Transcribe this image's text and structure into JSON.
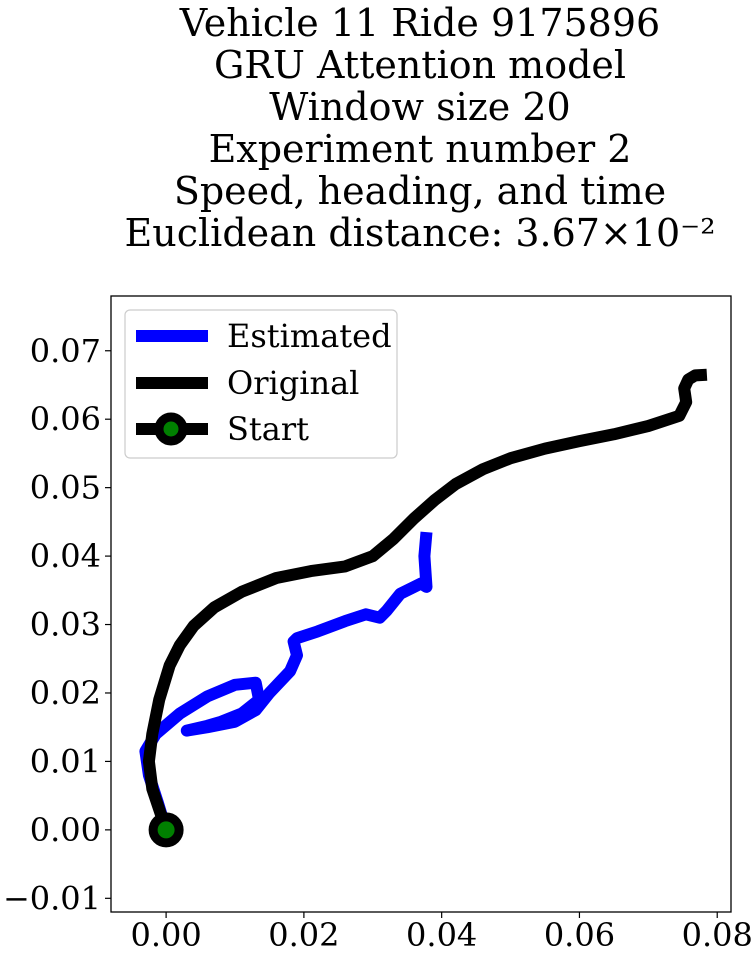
{
  "chart_data": {
    "type": "line",
    "title_lines": [
      "Vehicle 11 Ride 9175896",
      "GRU Attention model",
      "Window size 20",
      "Experiment number 2",
      "Speed, heading, and time",
      "Euclidean distance: 3.67×10⁻²"
    ],
    "xlabel": "",
    "ylabel": "",
    "xlim": [
      -0.008,
      0.082
    ],
    "ylim": [
      -0.012,
      0.078
    ],
    "x_ticks": [
      0.0,
      0.02,
      0.04,
      0.06,
      0.08
    ],
    "x_tick_labels": [
      "0.00",
      "0.02",
      "0.04",
      "0.06",
      "0.08"
    ],
    "y_ticks": [
      -0.01,
      0.0,
      0.01,
      0.02,
      0.03,
      0.04,
      0.05,
      0.06,
      0.07
    ],
    "y_tick_labels": [
      "−0.01",
      "0.00",
      "0.01",
      "0.02",
      "0.03",
      "0.04",
      "0.05",
      "0.06",
      "0.07"
    ],
    "grid": false,
    "legend_position": "upper-left",
    "legend": [
      {
        "label": "Estimated",
        "color": "#0000ff",
        "marker": "none"
      },
      {
        "label": "Original",
        "color": "#000000",
        "marker": "none"
      },
      {
        "label": "Start",
        "color": "#000000",
        "marker": "circle",
        "marker_face": "#008000"
      }
    ],
    "series": [
      {
        "name": "Estimated",
        "color": "#0000ff",
        "x": [
          0.0,
          -0.0012,
          -0.0025,
          -0.003,
          -0.0015,
          0.002,
          0.006,
          0.01,
          0.013,
          0.0135,
          0.011,
          0.008,
          0.006,
          0.003,
          0.006,
          0.01,
          0.013,
          0.015,
          0.018,
          0.019,
          0.0185,
          0.019,
          0.022,
          0.026,
          0.029,
          0.031,
          0.032,
          0.034,
          0.037,
          0.0378,
          0.0375,
          0.0378
        ],
        "y": [
          0.0,
          0.004,
          0.008,
          0.0115,
          0.014,
          0.017,
          0.0195,
          0.0212,
          0.0215,
          0.019,
          0.017,
          0.0158,
          0.0152,
          0.0145,
          0.015,
          0.0158,
          0.0175,
          0.02,
          0.0232,
          0.0255,
          0.0275,
          0.028,
          0.029,
          0.0305,
          0.0315,
          0.031,
          0.032,
          0.0345,
          0.036,
          0.0355,
          0.04,
          0.0435
        ]
      },
      {
        "name": "Original",
        "color": "#000000",
        "x": [
          0.0,
          -0.001,
          -0.002,
          -0.0025,
          -0.002,
          -0.001,
          0.0005,
          0.002,
          0.004,
          0.007,
          0.011,
          0.016,
          0.021,
          0.026,
          0.03,
          0.033,
          0.036,
          0.039,
          0.042,
          0.046,
          0.05,
          0.055,
          0.06,
          0.065,
          0.07,
          0.0745,
          0.0755,
          0.0752,
          0.0758,
          0.0768,
          0.0785
        ],
        "y": [
          0.0,
          0.003,
          0.006,
          0.01,
          0.014,
          0.019,
          0.024,
          0.027,
          0.0298,
          0.0325,
          0.0348,
          0.0368,
          0.0378,
          0.0385,
          0.04,
          0.0425,
          0.0455,
          0.0482,
          0.0505,
          0.0527,
          0.0543,
          0.0557,
          0.0568,
          0.0578,
          0.059,
          0.0605,
          0.0625,
          0.0645,
          0.0658,
          0.0664,
          0.0665
        ]
      }
    ],
    "start_point": {
      "x": 0.0,
      "y": 0.0
    }
  }
}
